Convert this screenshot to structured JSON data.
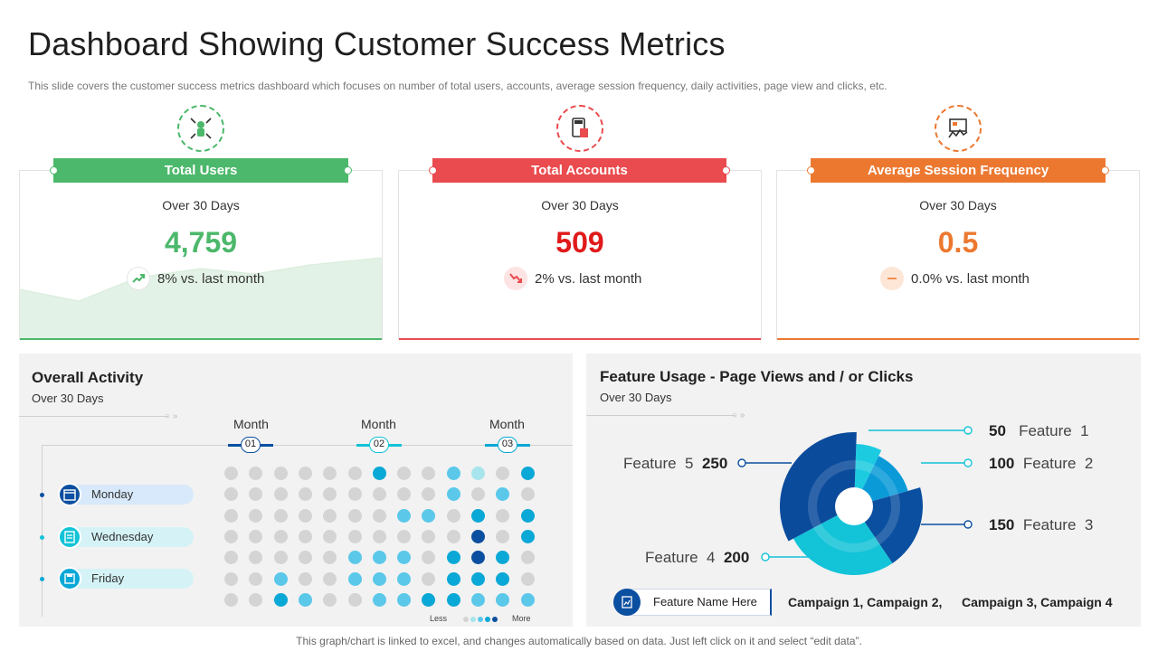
{
  "page": {
    "title": "Dashboard Showing Customer Success Metrics",
    "subtitle": "This slide covers the customer success metrics dashboard which focuses on number of total users, accounts, average session frequency, daily activities, page view and clicks, etc.",
    "footer": "This graph/chart is linked to excel,  and changes automatically based on data. Just left click on it and select “edit data”."
  },
  "kpis": [
    {
      "label": "Total Users",
      "period": "Over 30 Days",
      "value": "4,759",
      "trend": "8% vs. last month",
      "color": "#4cb86b",
      "icon": "user-network-icon",
      "trend_icon": "trend-up-icon"
    },
    {
      "label": "Total Accounts",
      "period": "Over 30 Days",
      "value": "509",
      "trend": "2% vs. last month",
      "color": "#e94b4e",
      "icon": "calculator-icon",
      "trend_icon": "trend-down-icon"
    },
    {
      "label": "Average Session Frequency",
      "period": "Over 30 Days",
      "value": "0.5",
      "trend": "0.0% vs. last month",
      "color": "#ec7830",
      "icon": "analytics-icon",
      "trend_icon": "trend-flat-icon"
    }
  ],
  "activity": {
    "title": "Overall Activity",
    "period": "Over 30 Days",
    "months": [
      {
        "label": "Month",
        "num": "01"
      },
      {
        "label": "Month",
        "num": "02"
      },
      {
        "label": "Month",
        "num": "03"
      }
    ],
    "days": [
      "Monday",
      "Wednesday",
      "Friday"
    ],
    "legend_less": "Less",
    "legend_more": "More",
    "grid": [
      [
        0,
        0,
        0,
        0,
        0,
        0,
        3,
        0,
        0,
        2,
        1,
        0,
        3
      ],
      [
        0,
        0,
        0,
        0,
        0,
        0,
        0,
        0,
        0,
        2,
        0,
        2,
        0
      ],
      [
        0,
        0,
        0,
        0,
        0,
        0,
        0,
        2,
        2,
        0,
        3,
        0,
        3
      ],
      [
        0,
        0,
        0,
        0,
        0,
        0,
        0,
        0,
        0,
        0,
        4,
        0,
        3
      ],
      [
        0,
        0,
        0,
        0,
        0,
        2,
        2,
        2,
        0,
        3,
        4,
        3,
        0
      ],
      [
        0,
        0,
        2,
        0,
        0,
        2,
        2,
        2,
        0,
        3,
        3,
        3,
        0
      ],
      [
        0,
        0,
        3,
        2,
        0,
        0,
        2,
        2,
        3,
        3,
        2,
        2,
        2
      ]
    ],
    "palette": [
      "#d4d4d4",
      "#a8e4ec",
      "#5bc8ea",
      "#0aa8d6",
      "#0b4fa0"
    ]
  },
  "feature_usage": {
    "title": "Feature Usage - Page Views and / or Clicks",
    "period": "Over 30 Days",
    "legend_label": "Feature Name Here",
    "campaigns": [
      "Campaign 1, Campaign 2,",
      "Campaign 3, Campaign 4"
    ],
    "chart_data": {
      "type": "pie",
      "title": "Feature Usage - Page Views and / or Clicks",
      "labels": [
        "Feature 1",
        "Feature 2",
        "Feature 3",
        "Feature 4",
        "Feature 5"
      ],
      "values": [
        50,
        100,
        150,
        200,
        250
      ],
      "colors": [
        "#1ccbe0",
        "#0a9ad8",
        "#0b4fa0",
        "#13c3d8",
        "#0a4b9c"
      ]
    },
    "features": [
      {
        "name": "Feature",
        "num": "1",
        "value": "50"
      },
      {
        "name": "Feature",
        "num": "2",
        "value": "100"
      },
      {
        "name": "Feature",
        "num": "3",
        "value": "150"
      },
      {
        "name": "Feature",
        "num": "4",
        "value": "200"
      },
      {
        "name": "Feature",
        "num": "5",
        "value": "250"
      }
    ]
  }
}
